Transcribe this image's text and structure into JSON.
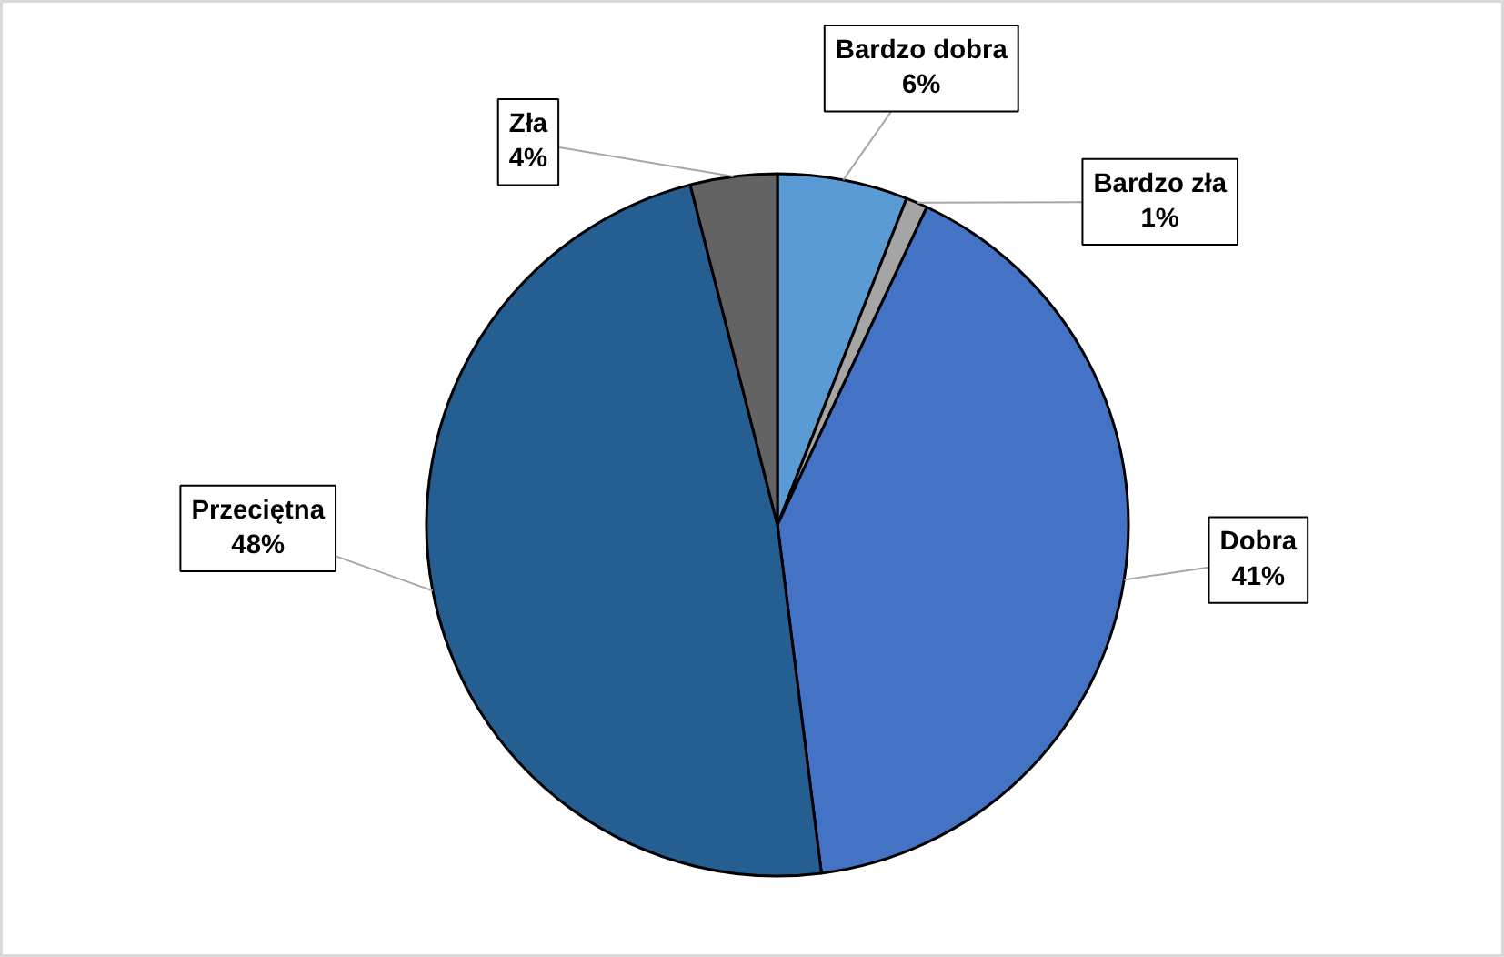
{
  "chart_data": {
    "type": "pie",
    "categories": [
      "Bardzo dobra",
      "Bardzo zła",
      "Dobra",
      "Przeciętna",
      "Zła"
    ],
    "values": [
      6,
      1,
      41,
      48,
      4
    ],
    "colors": [
      "#5b9bd5",
      "#a5a5a5",
      "#4472c4",
      "#255e91",
      "#636363"
    ],
    "value_labels": [
      "6%",
      "1%",
      "41%",
      "48%",
      "4%"
    ]
  }
}
